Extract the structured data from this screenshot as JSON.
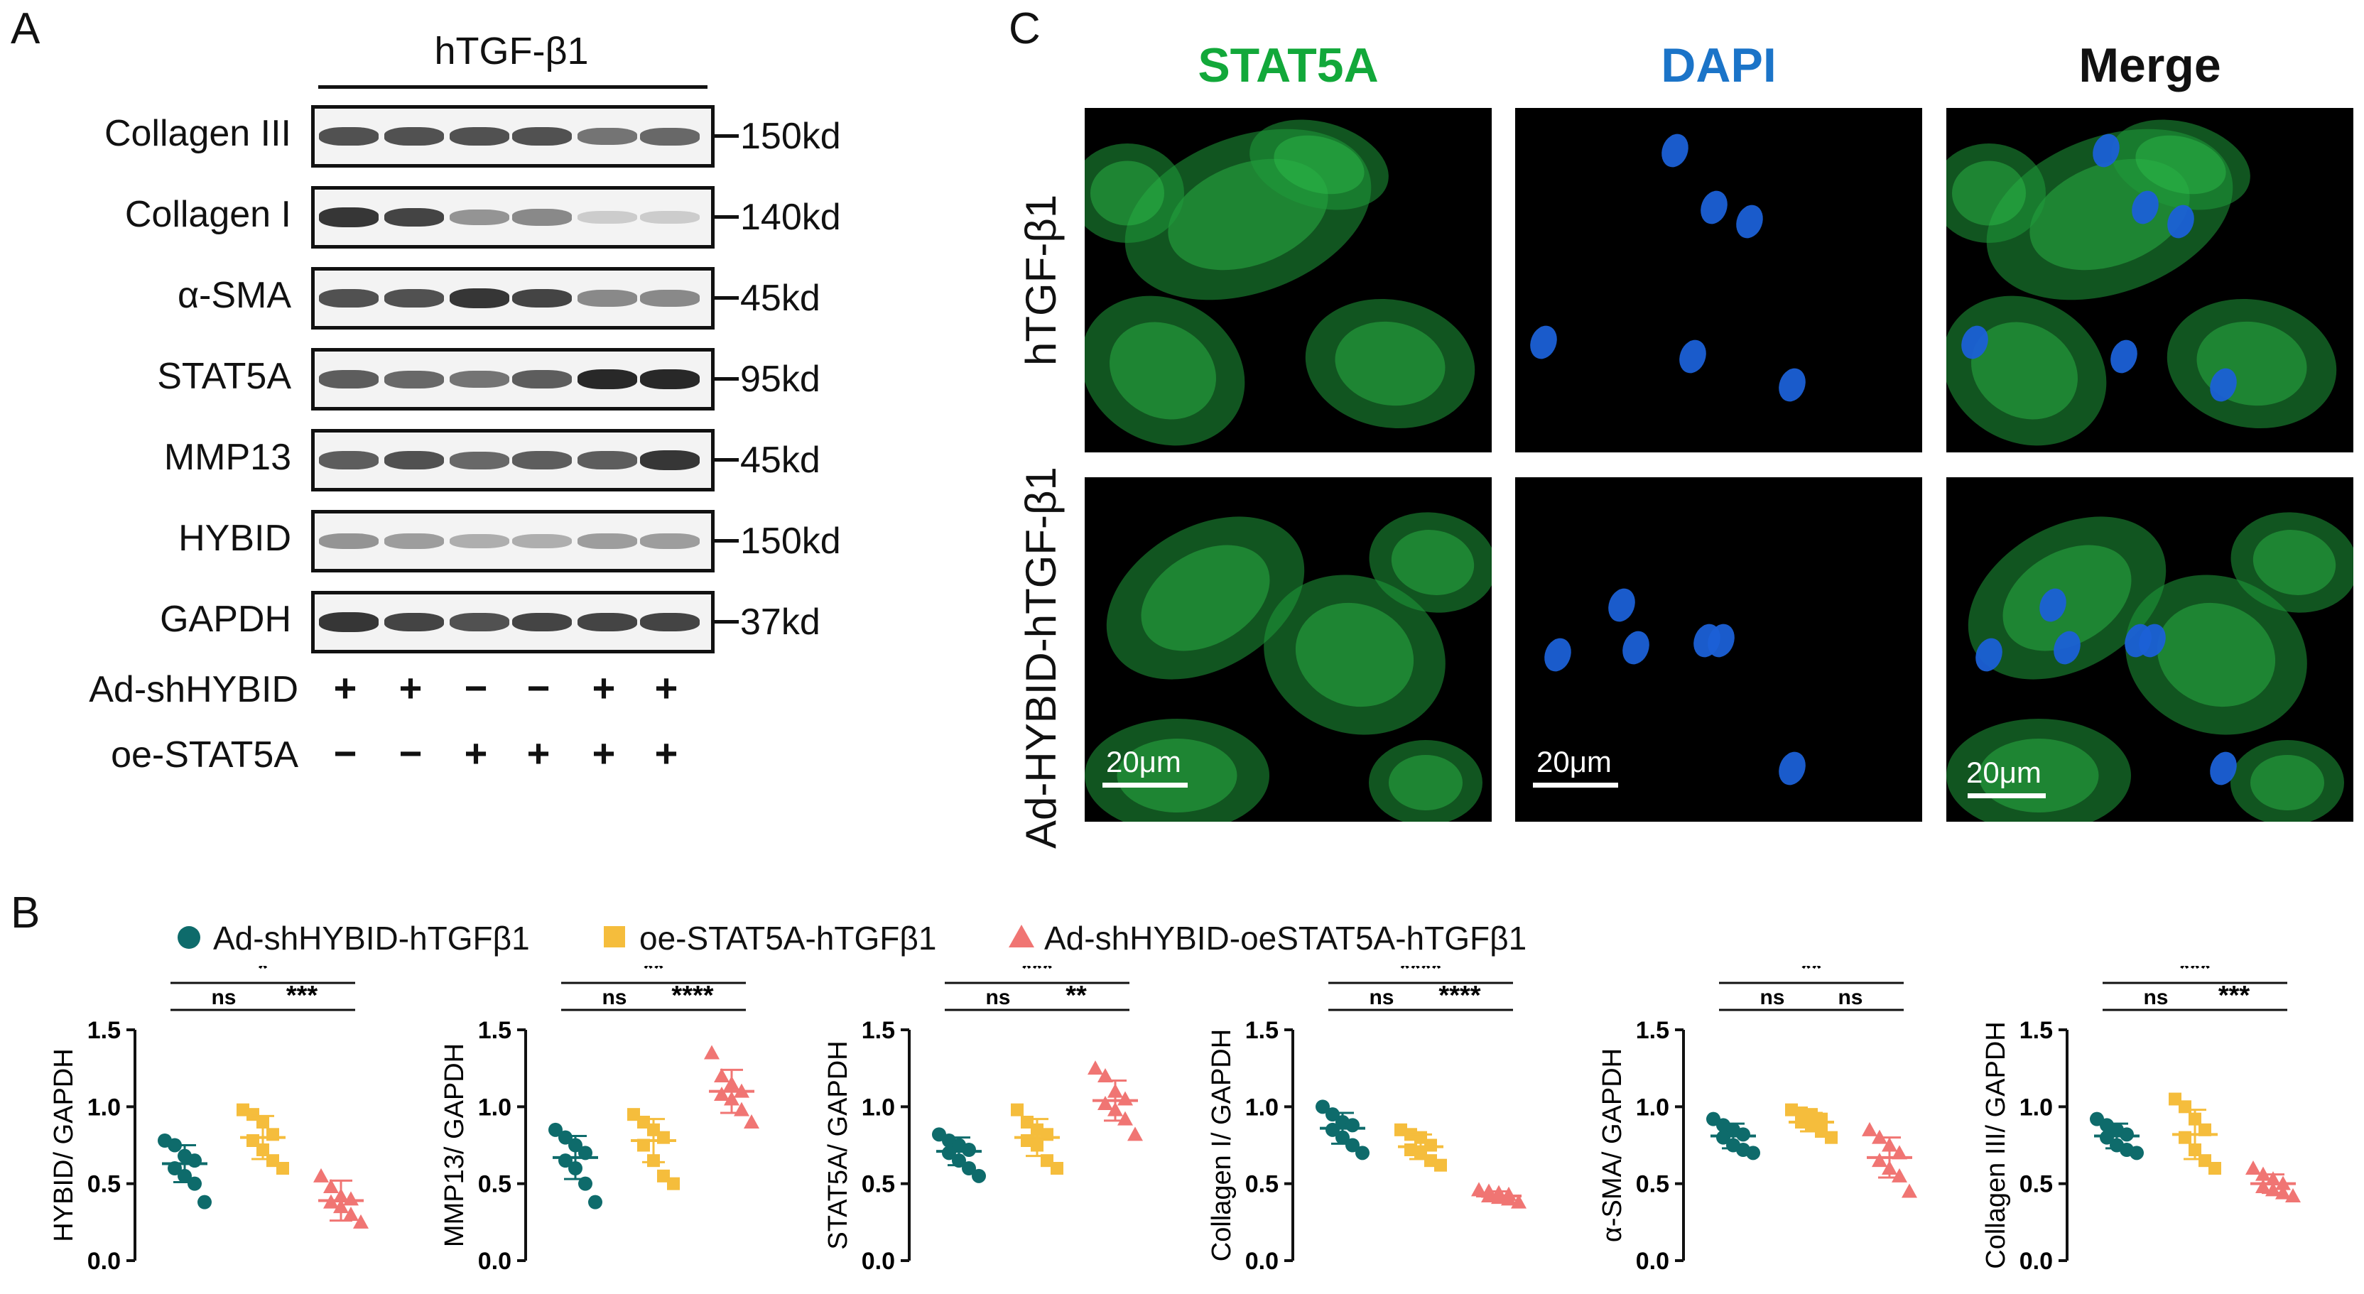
{
  "panels": {
    "a": "A",
    "b": "B",
    "c": "C"
  },
  "western_blot": {
    "treatment_header": "hTGF-β1",
    "bands": [
      {
        "label": "Collagen III",
        "kd": "150kd",
        "intensities": [
          0.85,
          0.85,
          0.85,
          0.85,
          0.7,
          0.75
        ]
      },
      {
        "label": "Collagen I",
        "kd": "140kd",
        "intensities": [
          0.95,
          0.9,
          0.55,
          0.6,
          0.2,
          0.2
        ]
      },
      {
        "label": "α-SMA",
        "kd": "45kd",
        "intensities": [
          0.85,
          0.85,
          0.95,
          0.9,
          0.6,
          0.6
        ]
      },
      {
        "label": "STAT5A",
        "kd": "95kd",
        "intensities": [
          0.8,
          0.75,
          0.7,
          0.8,
          1.0,
          1.0
        ]
      },
      {
        "label": "MMP13",
        "kd": "45kd",
        "intensities": [
          0.8,
          0.85,
          0.75,
          0.8,
          0.8,
          0.95
        ]
      },
      {
        "label": "HYBID",
        "kd": "150kd",
        "intensities": [
          0.55,
          0.5,
          0.4,
          0.4,
          0.5,
          0.5
        ]
      },
      {
        "label": "GAPDH",
        "kd": "37kd",
        "intensities": [
          0.95,
          0.9,
          0.85,
          0.9,
          0.9,
          0.9
        ]
      }
    ],
    "conditions": [
      {
        "label": "Ad-shHYBID",
        "signs": [
          "+",
          "+",
          "−",
          "−",
          "+",
          "+"
        ]
      },
      {
        "label": "oe-STAT5A",
        "signs": [
          "−",
          "−",
          "+",
          "+",
          "+",
          "+"
        ]
      }
    ]
  },
  "microscopy": {
    "columns": [
      {
        "label": "STAT5A",
        "color": "#12a83a"
      },
      {
        "label": "DAPI",
        "color": "#1b74c8"
      },
      {
        "label": "Merge",
        "color": "#111111"
      }
    ],
    "rows": [
      "hTGF-β1",
      "Ad-HYBID-hTGF-β1"
    ],
    "scale_bar": "20μm"
  },
  "legend": {
    "items": [
      {
        "label": "Ad-shHYBID-hTGFβ1",
        "color": "#0e6b6b",
        "shape": "circle"
      },
      {
        "label": "oe-STAT5A-hTGFβ1",
        "color": "#f5bd3c",
        "shape": "square"
      },
      {
        "label": "Ad-shHYBID-oeSTAT5A-hTGFβ1",
        "color": "#f07573",
        "shape": "triangle"
      }
    ]
  },
  "chart_data": [
    {
      "type": "scatter",
      "ylabel": "HYBID/ GAPDH",
      "ylim": [
        0,
        1.5
      ],
      "yticks": [
        "0.0",
        "0.5",
        "1.0",
        "1.5"
      ],
      "series": [
        {
          "name": "Ad-shHYBID-hTGFβ1",
          "values": [
            0.78,
            0.75,
            0.68,
            0.65,
            0.6,
            0.55,
            0.5,
            0.38
          ],
          "mean": 0.63,
          "sd": 0.12
        },
        {
          "name": "oe-STAT5A-hTGFβ1",
          "values": [
            0.98,
            0.95,
            0.9,
            0.82,
            0.78,
            0.72,
            0.65,
            0.6
          ],
          "mean": 0.8,
          "sd": 0.14
        },
        {
          "name": "Ad-shHYBID-oeSTAT5A-hTGFβ1",
          "values": [
            0.55,
            0.48,
            0.42,
            0.4,
            0.38,
            0.35,
            0.3,
            0.25
          ],
          "mean": 0.39,
          "sd": 0.13
        }
      ],
      "comparisons": [
        {
          "from": 0,
          "to": 1,
          "label": "ns",
          "level": 0
        },
        {
          "from": 1,
          "to": 2,
          "label": "***",
          "level": 0
        },
        {
          "from": 0,
          "to": 2,
          "label": "*",
          "level": 1
        }
      ]
    },
    {
      "type": "scatter",
      "ylabel": "MMP13/ GAPDH",
      "ylim": [
        0,
        1.5
      ],
      "yticks": [
        "0.0",
        "0.5",
        "1.0",
        "1.5"
      ],
      "series": [
        {
          "name": "Ad-shHYBID-hTGFβ1",
          "values": [
            0.85,
            0.8,
            0.75,
            0.7,
            0.65,
            0.6,
            0.5,
            0.38
          ],
          "mean": 0.67,
          "sd": 0.14
        },
        {
          "name": "oe-STAT5A-hTGFβ1",
          "values": [
            0.95,
            0.9,
            0.85,
            0.8,
            0.75,
            0.65,
            0.55,
            0.5
          ],
          "mean": 0.78,
          "sd": 0.14
        },
        {
          "name": "Ad-shHYBID-oeSTAT5A-hTGFβ1",
          "values": [
            1.35,
            1.2,
            1.15,
            1.1,
            1.08,
            1.05,
            0.98,
            0.9
          ],
          "mean": 1.1,
          "sd": 0.14
        }
      ],
      "comparisons": [
        {
          "from": 0,
          "to": 1,
          "label": "ns",
          "level": 0
        },
        {
          "from": 1,
          "to": 2,
          "label": "****",
          "level": 0
        },
        {
          "from": 0,
          "to": 2,
          "label": "**",
          "level": 1
        }
      ]
    },
    {
      "type": "scatter",
      "ylabel": "STAT5A/ GAPDH",
      "ylim": [
        0,
        1.5
      ],
      "yticks": [
        "0.0",
        "0.5",
        "1.0",
        "1.5"
      ],
      "series": [
        {
          "name": "Ad-shHYBID-hTGFβ1",
          "values": [
            0.82,
            0.78,
            0.75,
            0.72,
            0.7,
            0.65,
            0.6,
            0.55
          ],
          "mean": 0.71,
          "sd": 0.09
        },
        {
          "name": "oe-STAT5A-hTGFβ1",
          "values": [
            0.98,
            0.9,
            0.85,
            0.82,
            0.78,
            0.75,
            0.65,
            0.6
          ],
          "mean": 0.8,
          "sd": 0.12
        },
        {
          "name": "Ad-shHYBID-oeSTAT5A-hTGFβ1",
          "values": [
            1.25,
            1.2,
            1.1,
            1.05,
            1.02,
            0.98,
            0.92,
            0.82
          ],
          "mean": 1.04,
          "sd": 0.13
        }
      ],
      "comparisons": [
        {
          "from": 0,
          "to": 1,
          "label": "ns",
          "level": 0
        },
        {
          "from": 1,
          "to": 2,
          "label": "**",
          "level": 0
        },
        {
          "from": 0,
          "to": 2,
          "label": "***",
          "level": 1
        }
      ]
    },
    {
      "type": "scatter",
      "ylabel": "Collagen I/ GAPDH",
      "ylim": [
        0,
        1.5
      ],
      "yticks": [
        "0.0",
        "0.5",
        "1.0",
        "1.5"
      ],
      "series": [
        {
          "name": "Ad-shHYBID-hTGFβ1",
          "values": [
            1.0,
            0.95,
            0.9,
            0.88,
            0.85,
            0.8,
            0.75,
            0.7
          ],
          "mean": 0.86,
          "sd": 0.1
        },
        {
          "name": "oe-STAT5A-hTGFβ1",
          "values": [
            0.85,
            0.82,
            0.8,
            0.75,
            0.72,
            0.7,
            0.65,
            0.62
          ],
          "mean": 0.74,
          "sd": 0.08
        },
        {
          "name": "Ad-shHYBID-oeSTAT5A-hTGFβ1",
          "values": [
            0.46,
            0.45,
            0.44,
            0.43,
            0.42,
            0.41,
            0.4,
            0.38
          ],
          "mean": 0.42,
          "sd": 0.03
        }
      ],
      "comparisons": [
        {
          "from": 0,
          "to": 1,
          "label": "ns",
          "level": 0
        },
        {
          "from": 1,
          "to": 2,
          "label": "****",
          "level": 0
        },
        {
          "from": 0,
          "to": 2,
          "label": "****",
          "level": 1
        }
      ]
    },
    {
      "type": "scatter",
      "ylabel": "α-SMA/ GAPDH",
      "ylim": [
        0,
        1.5
      ],
      "yticks": [
        "0.0",
        "0.5",
        "1.0",
        "1.5"
      ],
      "series": [
        {
          "name": "Ad-shHYBID-hTGFβ1",
          "values": [
            0.92,
            0.88,
            0.85,
            0.82,
            0.8,
            0.75,
            0.72,
            0.7
          ],
          "mean": 0.81,
          "sd": 0.08
        },
        {
          "name": "oe-STAT5A-hTGFβ1",
          "values": [
            0.98,
            0.96,
            0.95,
            0.92,
            0.9,
            0.88,
            0.84,
            0.8
          ],
          "mean": 0.9,
          "sd": 0.06
        },
        {
          "name": "Ad-shHYBID-oeSTAT5A-hTGFβ1",
          "values": [
            0.85,
            0.8,
            0.75,
            0.7,
            0.65,
            0.6,
            0.55,
            0.45
          ],
          "mean": 0.67,
          "sd": 0.13
        }
      ],
      "comparisons": [
        {
          "from": 0,
          "to": 1,
          "label": "ns",
          "level": 0
        },
        {
          "from": 1,
          "to": 2,
          "label": "ns",
          "level": 0
        },
        {
          "from": 0,
          "to": 2,
          "label": "**",
          "level": 1
        }
      ]
    },
    {
      "type": "scatter",
      "ylabel": "Collagen III/ GAPDH",
      "ylim": [
        0,
        1.5
      ],
      "yticks": [
        "0.0",
        "0.5",
        "1.0",
        "1.5"
      ],
      "series": [
        {
          "name": "Ad-shHYBID-hTGFβ1",
          "values": [
            0.92,
            0.88,
            0.85,
            0.82,
            0.8,
            0.75,
            0.72,
            0.7
          ],
          "mean": 0.81,
          "sd": 0.08
        },
        {
          "name": "oe-STAT5A-hTGFβ1",
          "values": [
            1.05,
            1.0,
            0.92,
            0.85,
            0.8,
            0.72,
            0.65,
            0.6
          ],
          "mean": 0.82,
          "sd": 0.16
        },
        {
          "name": "Ad-shHYBID-oeSTAT5A-hTGFβ1",
          "values": [
            0.6,
            0.56,
            0.53,
            0.5,
            0.48,
            0.46,
            0.44,
            0.42
          ],
          "mean": 0.5,
          "sd": 0.06
        }
      ],
      "comparisons": [
        {
          "from": 0,
          "to": 1,
          "label": "ns",
          "level": 0
        },
        {
          "from": 1,
          "to": 2,
          "label": "***",
          "level": 0
        },
        {
          "from": 0,
          "to": 2,
          "label": "***",
          "level": 1
        }
      ]
    }
  ]
}
